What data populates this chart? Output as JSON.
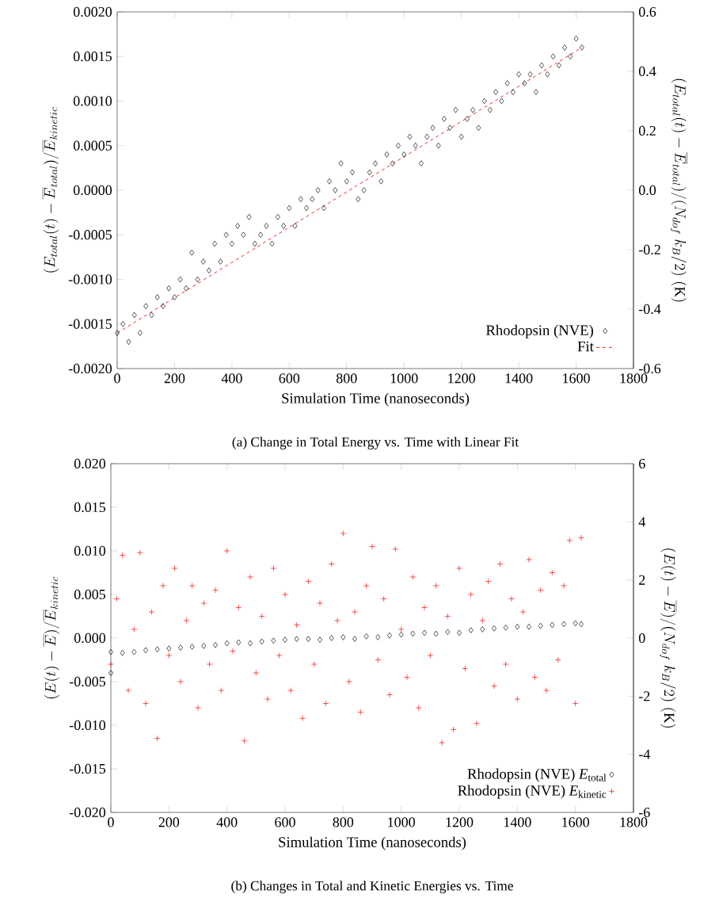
{
  "chart_data": [
    {
      "type": "scatter",
      "xlabel": "Simulation Time (nanoseconds)",
      "ylabel": "(E_{total}(t)-\\overline{E}_{total})/\\overline{E}_{kinetic}",
      "y2label": "(E_{total}(t)-\\overline{E}_{total})/(N_{dof}\\;k_{B}/2)\\;\\mathrm{(K)}",
      "annotations": [
        "(a)  Change in Total Energy vs. Time with Linear Fit"
      ],
      "xlim": [
        0,
        1800
      ],
      "xticks": [
        0,
        200,
        400,
        600,
        800,
        1000,
        1200,
        1400,
        1600,
        1800
      ],
      "ylim": [
        -0.002,
        0.002
      ],
      "yticks": [
        {
          "value": -0.002,
          "label": "-0.0020"
        },
        {
          "value": -0.0015,
          "label": "-0.0015"
        },
        {
          "value": -0.001,
          "label": "-0.0010"
        },
        {
          "value": -0.0005,
          "label": "-0.0005"
        },
        {
          "value": 0,
          "label": "0.0000"
        },
        {
          "value": 0.0005,
          "label": "0.0005"
        },
        {
          "value": 0.001,
          "label": "0.0010"
        },
        {
          "value": 0.0015,
          "label": "0.0015"
        },
        {
          "value": 0.002,
          "label": "0.0020"
        }
      ],
      "y2lim": [
        -0.6,
        0.6
      ],
      "y2ticks": [
        -0.6,
        -0.4,
        -0.2,
        {
          "value": 0,
          "label": "0.0"
        },
        0.2,
        0.4,
        0.6
      ],
      "legend": "bottom right",
      "series": [
        {
          "name": "Rhodopsin (NVE)",
          "marker": "diamond",
          "color": "#000000",
          "x": [
            0,
            20,
            40,
            60,
            80,
            100,
            120,
            140,
            160,
            180,
            200,
            220,
            240,
            260,
            280,
            300,
            320,
            340,
            360,
            380,
            400,
            420,
            440,
            460,
            480,
            500,
            520,
            540,
            560,
            580,
            600,
            620,
            640,
            660,
            680,
            700,
            720,
            740,
            760,
            780,
            800,
            820,
            840,
            860,
            880,
            900,
            920,
            940,
            960,
            980,
            1000,
            1020,
            1040,
            1060,
            1080,
            1100,
            1120,
            1140,
            1160,
            1180,
            1200,
            1220,
            1240,
            1260,
            1280,
            1300,
            1320,
            1340,
            1360,
            1380,
            1400,
            1420,
            1440,
            1460,
            1480,
            1500,
            1520,
            1540,
            1560,
            1580,
            1600,
            1620
          ],
          "values": [
            -0.0016,
            -0.0015,
            -0.0017,
            -0.0014,
            -0.0016,
            -0.0013,
            -0.0014,
            -0.0012,
            -0.0013,
            -0.0011,
            -0.0012,
            -0.001,
            -0.0011,
            -0.0007,
            -0.001,
            -0.0008,
            -0.0009,
            -0.0006,
            -0.0008,
            -0.0005,
            -0.0006,
            -0.0004,
            -0.0005,
            -0.0003,
            -0.0006,
            -0.0005,
            -0.0004,
            -0.0006,
            -0.0003,
            -0.0004,
            -0.0002,
            -0.0004,
            -0.0001,
            -0.0002,
            -0.0001,
            0.0,
            -0.0002,
            0.0001,
            0.0,
            0.0003,
            0.0001,
            0.0002,
            -0.0001,
            0.0,
            0.0002,
            0.0003,
            0.0001,
            0.0004,
            0.0003,
            0.0005,
            0.0004,
            0.0006,
            0.0005,
            0.0003,
            0.0006,
            0.0007,
            0.0005,
            0.0008,
            0.0007,
            0.0009,
            0.0006,
            0.0008,
            0.0009,
            0.0007,
            0.001,
            0.0009,
            0.0011,
            0.001,
            0.0012,
            0.0011,
            0.0013,
            0.0012,
            0.0013,
            0.0011,
            0.0014,
            0.0013,
            0.0015,
            0.0014,
            0.0016,
            0.0015,
            0.0017,
            0.0016
          ]
        },
        {
          "name": "Fit",
          "type": "line",
          "marker": "none",
          "line_style": "dashed",
          "color": "#e02020",
          "x": [
            0,
            1620
          ],
          "values": [
            -0.0016,
            0.0016
          ]
        }
      ]
    },
    {
      "type": "scatter",
      "xlabel": "Simulation Time (nanoseconds)",
      "ylabel": "(E(t)-\\overline{E})/\\overline{E}_{kinetic}",
      "y2label": "(E(t)-\\overline{E})/(N_{dof}\\;k_{B}/2)\\;\\mathrm{(K)}",
      "annotations": [
        "(b)  Changes in Total and Kinetic Energies vs. Time"
      ],
      "xlim": [
        0,
        1800
      ],
      "xticks": [
        0,
        200,
        400,
        600,
        800,
        1000,
        1200,
        1400,
        1600,
        1800
      ],
      "ylim": [
        -0.02,
        0.02
      ],
      "yticks": [
        {
          "value": -0.02,
          "label": "-0.020"
        },
        {
          "value": -0.015,
          "label": "-0.015"
        },
        {
          "value": -0.01,
          "label": "-0.010"
        },
        {
          "value": -0.005,
          "label": "-0.005"
        },
        {
          "value": 0,
          "label": "0.000"
        },
        {
          "value": 0.005,
          "label": "0.005"
        },
        {
          "value": 0.01,
          "label": "0.010"
        },
        {
          "value": 0.015,
          "label": "0.015"
        },
        {
          "value": 0.02,
          "label": "0.020"
        }
      ],
      "y2lim": [
        -6,
        6
      ],
      "y2ticks": [
        -6,
        -4,
        -2,
        0,
        2,
        4,
        6
      ],
      "legend": "bottom right",
      "series": [
        {
          "name": "Rhodopsin (NVE) *E*$_{total}$",
          "marker": "diamond",
          "color": "#000000",
          "x": [
            0,
            0,
            40,
            80,
            120,
            160,
            200,
            240,
            280,
            320,
            360,
            400,
            440,
            480,
            520,
            560,
            600,
            640,
            680,
            720,
            760,
            800,
            840,
            880,
            920,
            960,
            1000,
            1040,
            1080,
            1120,
            1160,
            1200,
            1240,
            1280,
            1320,
            1360,
            1400,
            1440,
            1480,
            1520,
            1560,
            1600,
            1620
          ],
          "values": [
            -0.004,
            -0.0016,
            -0.0017,
            -0.0016,
            -0.0014,
            -0.0013,
            -0.0012,
            -0.0011,
            -0.001,
            -0.0009,
            -0.0008,
            -0.0006,
            -0.0005,
            -0.0006,
            -0.0004,
            -0.0003,
            -0.0002,
            -0.0001,
            -0.0001,
            -0.0002,
            0.0,
            0.0001,
            -0.0001,
            0.0002,
            0.0001,
            0.0003,
            0.0004,
            0.0005,
            0.0006,
            0.0005,
            0.0007,
            0.0006,
            0.0009,
            0.001,
            0.0011,
            0.0012,
            0.0013,
            0.0013,
            0.0014,
            0.0015,
            0.0016,
            0.0017,
            0.0016
          ]
        },
        {
          "name": "Rhodopsin (NVE) *E*$_{kinetic}$",
          "marker": "cross",
          "color": "#ff0000",
          "x": [
            0,
            20,
            40,
            60,
            80,
            100,
            120,
            140,
            160,
            180,
            200,
            220,
            240,
            260,
            280,
            300,
            320,
            340,
            360,
            380,
            400,
            420,
            440,
            460,
            480,
            500,
            520,
            540,
            560,
            580,
            600,
            620,
            640,
            660,
            680,
            700,
            720,
            740,
            760,
            780,
            800,
            820,
            840,
            860,
            880,
            900,
            920,
            940,
            960,
            980,
            1000,
            1020,
            1040,
            1060,
            1080,
            1100,
            1120,
            1140,
            1160,
            1180,
            1200,
            1220,
            1240,
            1260,
            1280,
            1300,
            1320,
            1340,
            1360,
            1380,
            1400,
            1420,
            1440,
            1460,
            1480,
            1500,
            1520,
            1540,
            1560,
            1580,
            1600,
            1620
          ],
          "values": [
            -0.003,
            0.0045,
            0.0095,
            -0.006,
            0.001,
            0.0098,
            -0.0075,
            0.003,
            -0.0115,
            0.006,
            -0.002,
            0.008,
            -0.005,
            0.002,
            0.006,
            -0.008,
            0.004,
            -0.003,
            0.0055,
            -0.006,
            0.01,
            -0.0015,
            0.0035,
            -0.0118,
            0.007,
            -0.004,
            0.0025,
            -0.007,
            0.008,
            -0.002,
            0.005,
            -0.006,
            0.0015,
            -0.0092,
            0.0065,
            -0.003,
            0.004,
            -0.0075,
            0.0085,
            0.002,
            0.012,
            -0.005,
            0.003,
            -0.0085,
            0.006,
            0.0105,
            -0.0025,
            0.0045,
            -0.0065,
            0.0102,
            0.001,
            -0.0045,
            0.007,
            -0.008,
            0.0035,
            -0.002,
            0.006,
            -0.012,
            0.0025,
            -0.0105,
            0.008,
            -0.0035,
            0.005,
            -0.0098,
            0.002,
            0.0065,
            -0.0055,
            0.0085,
            -0.003,
            0.0045,
            -0.007,
            0.003,
            0.009,
            -0.0045,
            0.0055,
            -0.006,
            0.0075,
            -0.0025,
            0.006,
            0.0112,
            -0.0075,
            0.0115
          ]
        }
      ]
    }
  ]
}
